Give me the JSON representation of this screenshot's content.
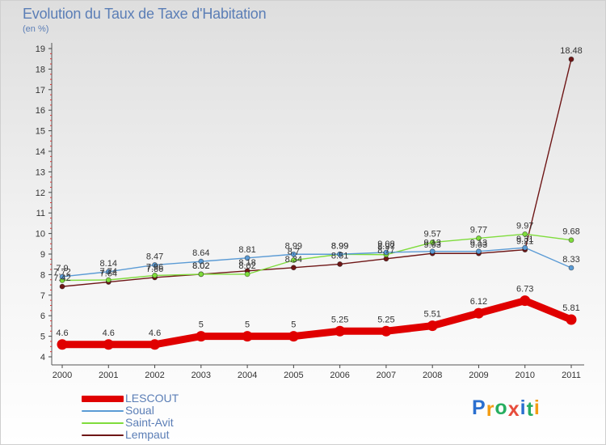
{
  "title": "Evolution du Taux de Taxe d'Habitation",
  "unit_label": "(en %)",
  "chart_data": {
    "type": "line",
    "title": "Evolution du Taux de Taxe d'Habitation",
    "ylabel": "(en %)",
    "xlabel": "",
    "x": [
      "2000",
      "2001",
      "2002",
      "2003",
      "2004",
      "2005",
      "2006",
      "2007",
      "2008",
      "2009",
      "2010",
      "2011"
    ],
    "ylim": [
      4,
      19
    ],
    "yticks": [
      4,
      5,
      6,
      7,
      8,
      9,
      10,
      11,
      12,
      13,
      14,
      15,
      16,
      17,
      18,
      19
    ],
    "series": [
      {
        "name": "LESCOUT",
        "color": "#e00000",
        "values": [
          4.6,
          4.6,
          4.6,
          5,
          5,
          5,
          5.25,
          5.25,
          5.51,
          6.12,
          6.73,
          5.81
        ],
        "labels": [
          "4.6",
          "4.6",
          "4.6",
          "5",
          "5",
          "5",
          "5.25",
          "5.25",
          "5.51",
          "6.12",
          "6.73",
          "5.81"
        ]
      },
      {
        "name": "Soual",
        "color": "#5b9bd5",
        "values": [
          7.9,
          8.14,
          8.47,
          8.64,
          8.81,
          8.99,
          8.99,
          9.08,
          9.13,
          9.13,
          9.31,
          8.33
        ],
        "labels": [
          "7.9",
          "8.14",
          "8.47",
          "8.64",
          "8.81",
          "8.99",
          "8.99",
          "9.08",
          "9.13",
          "9.13",
          "9.31",
          "8.33"
        ]
      },
      {
        "name": "Saint-Avit",
        "color": "#7fdc3c",
        "values": [
          7.72,
          7.74,
          7.96,
          8.02,
          8.02,
          8.7,
          8.99,
          8.97,
          9.57,
          9.77,
          9.97,
          9.68
        ],
        "labels": [
          "7.72",
          "7.74",
          "7.96",
          "8.02",
          "8.02",
          "8.7",
          "8.99",
          "8.97",
          "9.57",
          "9.77",
          "9.97",
          "9.68"
        ]
      },
      {
        "name": "Lempaut",
        "color": "#6e1616",
        "values": [
          7.42,
          7.64,
          7.86,
          8.02,
          8.18,
          8.34,
          8.51,
          8.77,
          9.03,
          9.03,
          9.21,
          18.48
        ],
        "labels": [
          "7.42",
          "7.64",
          "7.86",
          "8.02",
          "8.18",
          "8.34",
          "8.51",
          "8.77",
          "9.03",
          "9.03",
          "9.21",
          "18.48"
        ]
      }
    ],
    "legend": [
      "LESCOUT",
      "Soual",
      "Saint-Avit",
      "Lempaut"
    ],
    "legend_position": "bottom-left",
    "grid": false
  },
  "logo": {
    "text": "Proxiti",
    "letters": [
      {
        "ch": "P",
        "color": "#2a6fcf"
      },
      {
        "ch": "r",
        "color": "#f39c12"
      },
      {
        "ch": "o",
        "color": "#27ae60"
      },
      {
        "ch": "x",
        "color": "#e74c3c"
      },
      {
        "ch": "i",
        "color": "#2a6fcf"
      },
      {
        "ch": "t",
        "color": "#27ae60"
      },
      {
        "ch": "i",
        "color": "#f39c12"
      }
    ]
  }
}
